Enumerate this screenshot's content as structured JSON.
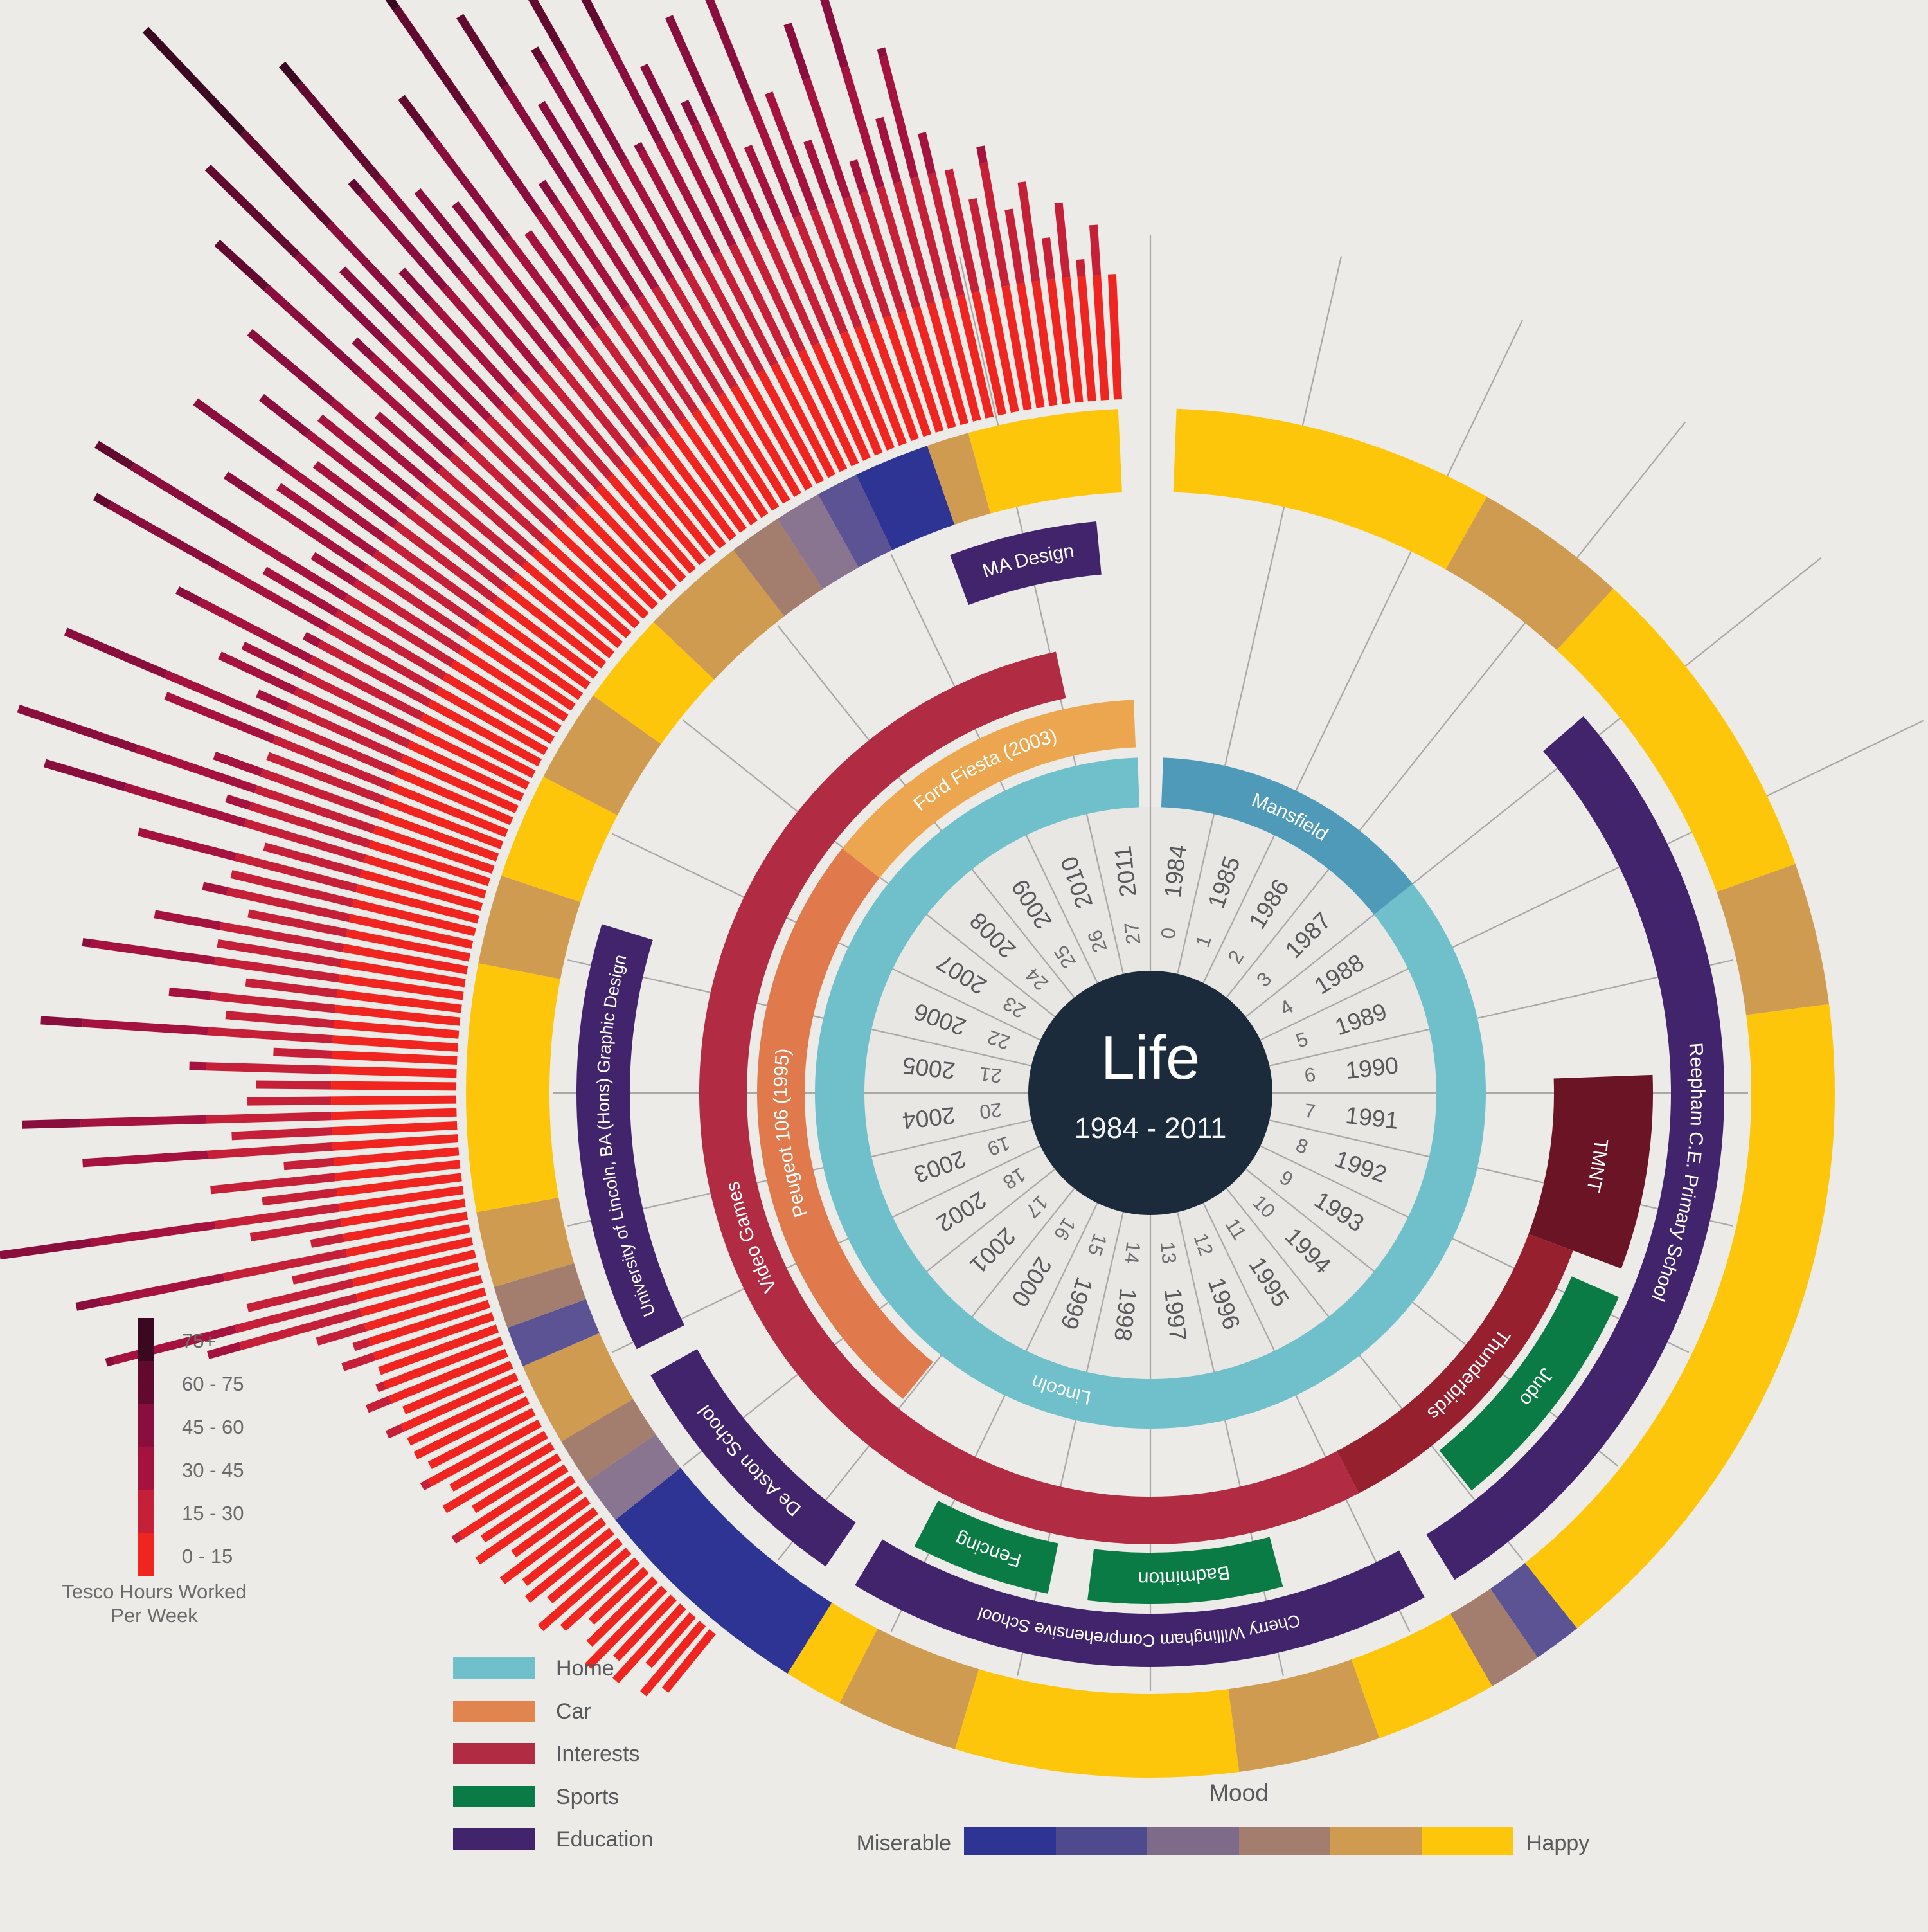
{
  "title": {
    "main": "Life",
    "subtitle": "1984 - 2011"
  },
  "timeline": {
    "start_year": 1984,
    "end_year": 2011,
    "age_start": 0,
    "sectors": 28
  },
  "palette": {
    "background": "#ECEBE8",
    "inner_disc": "#E8E7E4",
    "grid_line": "#A9A8A6",
    "center_circle": "#1B2B3C",
    "year_text": "#58595B",
    "age_text": "#6D6E70",
    "label_text": "#FFFFFF",
    "home_mansfield": "#4E9AB8",
    "home_lincoln": "#6FC0CB",
    "car_peugeot": "#E07A4C",
    "car_ford": "#ECA64F",
    "interests_main": "#B12B42",
    "interests_thunderbirds": "#97202F",
    "interests_tmnt": "#6A1426",
    "sports_green": "#0A7B45",
    "education_purple": "#41246B",
    "mood_happy": "#FDC60B",
    "mood_content": "#CE9B50",
    "mood_flat": "#A37D6E",
    "mood_low": "#8A7590",
    "mood_gloomy": "#5B5394",
    "mood_miserable": "#2D3494"
  },
  "chart_data": {
    "type": "radial-timeline",
    "title": "Life",
    "subtitle": "1984 - 2011",
    "rings": [
      {
        "id": "home",
        "label": "Home",
        "segments": [
          {
            "label": "Mansfield",
            "from": 1984.17,
            "to": 1988.0,
            "color": "home_mansfield"
          },
          {
            "label": "Lincoln",
            "from": 1988.0,
            "to": 2011.83,
            "color": "home_lincoln",
            "label_year": 1999.3
          }
        ]
      },
      {
        "id": "car",
        "label": "Car",
        "segments": [
          {
            "label": "Peugeot 106 (1995)",
            "from": 2001.03,
            "to": 2007.99,
            "color": "car_peugeot"
          },
          {
            "label": "Ford Fiesta (2003)",
            "from": 2007.99,
            "to": 2011.81,
            "color": "car_ford"
          }
        ]
      },
      {
        "id": "interests",
        "label": "Interests",
        "segments": [
          {
            "label": "TMNT",
            "from": 1990.84,
            "to": 1992.59,
            "color": "interests_tmnt",
            "box": true
          },
          {
            "label": "Thunderbirds",
            "from": 1992.59,
            "to": 1995.86,
            "color": "interests_thunderbirds"
          },
          {
            "label": "Video Games",
            "from": 1995.86,
            "to": 2011.06,
            "color": "interests_main",
            "label_year": 2003.46
          }
        ]
      },
      {
        "id": "sports",
        "label": "Sports",
        "segments": [
          {
            "label": "Judo",
            "from": 1992.83,
            "to": 1994.97,
            "color": "sports_green",
            "box": true
          },
          {
            "label": "Badminton",
            "from": 1996.83,
            "to": 1998.55,
            "color": "sports_green",
            "box": true
          },
          {
            "label": "Fencing",
            "from": 1998.9,
            "to": 2000.14,
            "color": "sports_green",
            "box": true
          }
        ]
      },
      {
        "id": "education",
        "label": "Education",
        "segments": [
          {
            "label": "Reepham C.E. Primary School",
            "from": 1987.81,
            "to": 1995.51,
            "color": "education_purple"
          },
          {
            "label": "Cherry Willingham Comprehensive School",
            "from": 1995.78,
            "to": 2000.41,
            "color": "education_purple"
          },
          {
            "label": "De Aston School",
            "from": 2000.68,
            "to": 2002.71,
            "color": "education_purple"
          },
          {
            "label": "University of Lincoln, BA (Hons) Graphic Design",
            "from": 2002.94,
            "to": 2006.33,
            "color": "education_purple"
          },
          {
            "label": "MA Design",
            "from": 2010.41,
            "to": 2011.58,
            "color": "education_purple"
          }
        ]
      },
      {
        "id": "mood",
        "label": "Mood",
        "segments": [
          {
            "from": 1984.17,
            "to": 1986.29,
            "color": "mood_happy"
          },
          {
            "from": 1986.29,
            "to": 1987.31,
            "color": "mood_content"
          },
          {
            "from": 1987.31,
            "to": 1989.48,
            "color": "mood_happy"
          },
          {
            "from": 1989.48,
            "to": 1990.42,
            "color": "mood_content"
          },
          {
            "from": 1990.42,
            "to": 1995.0,
            "color": "mood_happy"
          },
          {
            "from": 1995.0,
            "to": 1995.32,
            "color": "mood_gloomy"
          },
          {
            "from": 1995.32,
            "to": 1995.67,
            "color": "mood_flat"
          },
          {
            "from": 1995.67,
            "to": 1996.48,
            "color": "mood_happy"
          },
          {
            "from": 1996.48,
            "to": 1997.42,
            "color": "mood_content"
          },
          {
            "from": 1997.42,
            "to": 1999.29,
            "color": "mood_happy"
          },
          {
            "from": 1999.29,
            "to": 2000.1,
            "color": "mood_content"
          },
          {
            "from": 2000.1,
            "to": 2000.49,
            "color": "mood_happy"
          },
          {
            "from": 2000.49,
            "to": 2002.0,
            "color": "mood_miserable"
          },
          {
            "from": 2002.0,
            "to": 2002.31,
            "color": "mood_low"
          },
          {
            "from": 2002.31,
            "to": 2002.62,
            "color": "mood_flat"
          },
          {
            "from": 2002.62,
            "to": 2003.17,
            "color": "mood_content"
          },
          {
            "from": 2003.17,
            "to": 2003.44,
            "color": "mood_gloomy"
          },
          {
            "from": 2003.44,
            "to": 2003.72,
            "color": "mood_flat"
          },
          {
            "from": 2003.72,
            "to": 2004.22,
            "color": "mood_content"
          },
          {
            "from": 2004.22,
            "to": 2005.85,
            "color": "mood_happy"
          },
          {
            "from": 2005.85,
            "to": 2006.44,
            "color": "mood_content"
          },
          {
            "from": 2006.44,
            "to": 2007.14,
            "color": "mood_happy"
          },
          {
            "from": 2007.14,
            "to": 2007.76,
            "color": "mood_content"
          },
          {
            "from": 2007.76,
            "to": 2008.38,
            "color": "mood_happy"
          },
          {
            "from": 2008.38,
            "to": 2009.08,
            "color": "mood_content"
          },
          {
            "from": 2009.08,
            "to": 2009.43,
            "color": "mood_flat"
          },
          {
            "from": 2009.43,
            "to": 2009.74,
            "color": "mood_low"
          },
          {
            "from": 2009.74,
            "to": 2010.02,
            "color": "mood_gloomy"
          },
          {
            "from": 2010.02,
            "to": 2010.52,
            "color": "mood_miserable"
          },
          {
            "from": 2010.52,
            "to": 2010.8,
            "color": "mood_content"
          },
          {
            "from": 2010.8,
            "to": 2011.79,
            "color": "mood_happy"
          }
        ]
      }
    ],
    "tesco_bars": {
      "label": "Tesco Hours Worked Per Week",
      "start_year": 2001,
      "bars_per_year": 12,
      "buckets": [
        {
          "label": "0 - 15",
          "max": 15,
          "color": "#F1251F"
        },
        {
          "label": "15 - 30",
          "max": 30,
          "color": "#C62039"
        },
        {
          "label": "30 - 45",
          "max": 45,
          "color": "#A6123F"
        },
        {
          "label": "45 - 60",
          "max": 60,
          "color": "#8A0E3D"
        },
        {
          "label": "60 - 75",
          "max": 75,
          "color": "#61092F"
        },
        {
          "label": "75+",
          "max": 999,
          "color": "#3A0820"
        }
      ],
      "hours": [
        9,
        11,
        8,
        12,
        10,
        13,
        11,
        9,
        12,
        14,
        11,
        13,
        12,
        14,
        11,
        15,
        13,
        16,
        12,
        15,
        13,
        16,
        14,
        15,
        15,
        17,
        14,
        18,
        16,
        15,
        19,
        17,
        21,
        34,
        46,
        28,
        22,
        48,
        19,
        26,
        56,
        24,
        30,
        21,
        45,
        27,
        52,
        25,
        24,
        32,
        22,
        50,
        28,
        35,
        26,
        46,
        30,
        38,
        27,
        33,
        30,
        42,
        27,
        55,
        33,
        60,
        36,
        30,
        44,
        58,
        34,
        40,
        38,
        48,
        32,
        62,
        40,
        65,
        36,
        50,
        44,
        58,
        42,
        52,
        45,
        58,
        40,
        68,
        48,
        75,
        55,
        92,
        50,
        62,
        78,
        56,
        52,
        66,
        44,
        82,
        48,
        70,
        56,
        62,
        74,
        46,
        68,
        54,
        48,
        58,
        40,
        62,
        45,
        38,
        52,
        34,
        55,
        38,
        46,
        35,
        30,
        26,
        32,
        24,
        27,
        20,
        24,
        17,
        21,
        15
      ]
    }
  },
  "legends": {
    "tesco": {
      "caption": "Tesco Hours Worked Per Week"
    },
    "categories": [
      {
        "label": "Home",
        "color": "#6FC0CB"
      },
      {
        "label": "Car",
        "color": "#E0854E"
      },
      {
        "label": "Interests",
        "color": "#B12B42"
      },
      {
        "label": "Sports",
        "color": "#0A7B45"
      },
      {
        "label": "Education",
        "color": "#41246B"
      }
    ],
    "mood": {
      "title": "Mood",
      "left": "Miserable",
      "right": "Happy",
      "colors": [
        "#2D3494",
        "#4F4A8E",
        "#7E6A89",
        "#A37D6E",
        "#CE9B50",
        "#FDC60B"
      ]
    }
  }
}
